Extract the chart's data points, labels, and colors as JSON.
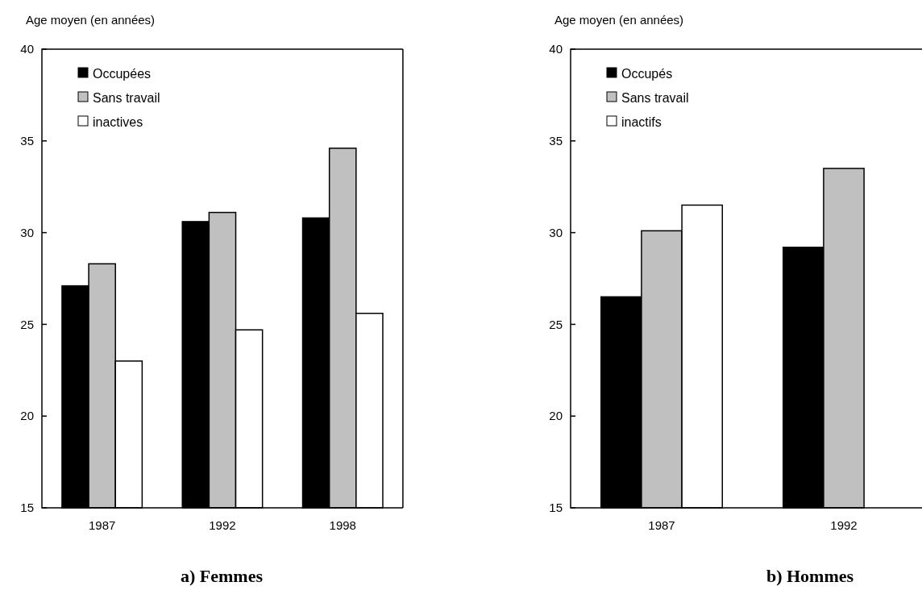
{
  "chart_data": [
    {
      "type": "bar",
      "title": "a) Femmes",
      "ylabel": "Age moyen (en années)",
      "categories": [
        "1987",
        "1992",
        "1998"
      ],
      "series": [
        {
          "name": "Occupées",
          "color": "#000000",
          "values": [
            27.1,
            30.6,
            30.8
          ]
        },
        {
          "name": "Sans travail",
          "color": "#c0c0c0",
          "values": [
            28.3,
            31.1,
            34.6
          ]
        },
        {
          "name": "inactives",
          "color": "#ffffff",
          "values": [
            23.0,
            24.7,
            25.6
          ]
        }
      ],
      "ylim": [
        15,
        40
      ],
      "yticks": [
        15,
        20,
        25,
        30,
        35,
        40
      ],
      "legend": "top left"
    },
    {
      "type": "bar",
      "title": "b) Hommes",
      "ylabel": "Age moyen (en années)",
      "categories": [
        "1987",
        "1992"
      ],
      "series": [
        {
          "name": "Occupés",
          "color": "#000000",
          "values": [
            26.5,
            29.2
          ]
        },
        {
          "name": "Sans travail",
          "color": "#c0c0c0",
          "values": [
            30.1,
            33.5
          ]
        },
        {
          "name": "inactifs",
          "color": "#ffffff",
          "values": [
            31.5,
            null
          ]
        }
      ],
      "ylim": [
        15,
        40
      ],
      "yticks": [
        15,
        20,
        25,
        30,
        35,
        40
      ],
      "legend": "top left"
    }
  ]
}
